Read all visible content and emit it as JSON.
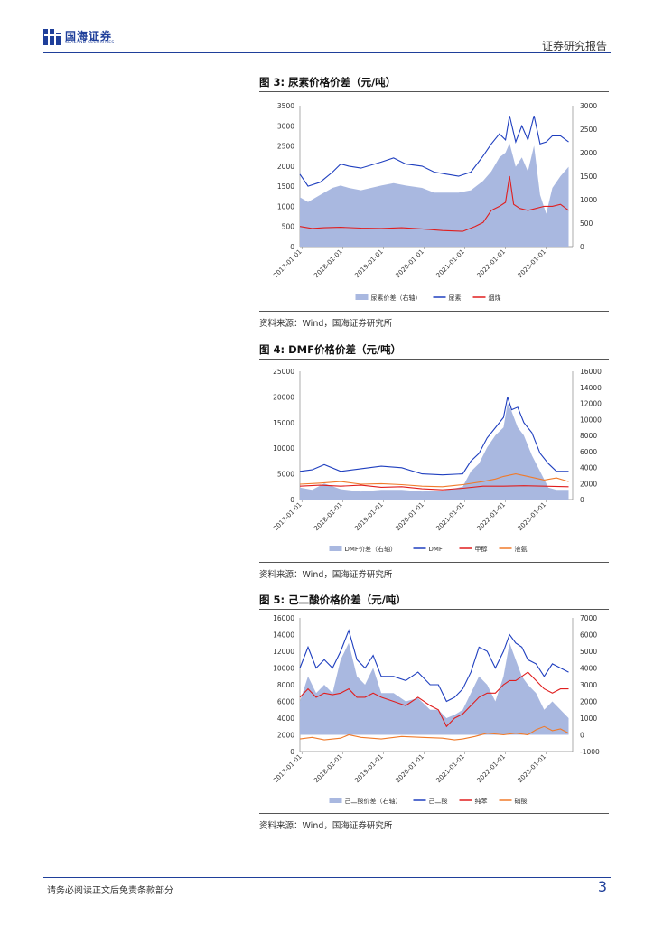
{
  "header": {
    "logo_cn": "国海证券",
    "logo_en": "SEALAND SECURITIES",
    "report_type": "证券研究报告"
  },
  "footer": {
    "disclaimer": "请务必阅读正文后免责条款部分",
    "page_number": "3"
  },
  "colors": {
    "brand": "#1f3f9a",
    "area": "#a9b8e0",
    "blue": "#1f3fbf",
    "red": "#e01e1e",
    "orange": "#f07a2a"
  },
  "figures": [
    {
      "title": "图 3:  尿素价格价差（元/吨）",
      "source": "资料来源：Wind，国海证券研究所",
      "chart_data": {
        "type": "line",
        "x_ticks": [
          "2017-01-01",
          "2018-01-01",
          "2019-01-01",
          "2020-01-01",
          "2021-01-01",
          "2022-01-01",
          "2023-01-01"
        ],
        "left_ylim": [
          0,
          3500
        ],
        "left_ticks": [
          "0",
          "500",
          "1000",
          "1500",
          "2000",
          "2500",
          "3000",
          "3500"
        ],
        "right_ylim": [
          0,
          3000
        ],
        "right_ticks": [
          "0",
          "500",
          "1000",
          "1500",
          "2000",
          "2500",
          "3000"
        ],
        "legend": [
          "尿素价差（右轴）",
          "尿素",
          "烟煤"
        ],
        "series": [
          {
            "name": "尿素价差（右轴）",
            "axis": "right",
            "kind": "area",
            "t": [
              0,
              0.2,
              0.5,
              0.8,
              1.0,
              1.2,
              1.5,
              2.0,
              2.3,
              2.6,
              3.0,
              3.3,
              3.6,
              3.9,
              4.2,
              4.5,
              4.7,
              4.9,
              5.05,
              5.15,
              5.3,
              5.45,
              5.6,
              5.75,
              5.9,
              6.05,
              6.2,
              6.4,
              6.6
            ],
            "v": [
              1050,
              950,
              1100,
              1250,
              1300,
              1250,
              1200,
              1300,
              1350,
              1300,
              1250,
              1150,
              1150,
              1150,
              1200,
              1400,
              1600,
              1900,
              2000,
              2200,
              1700,
              1900,
              1600,
              2150,
              1100,
              700,
              1250,
              1500,
              1700
            ]
          },
          {
            "name": "尿素",
            "axis": "left",
            "kind": "line",
            "t": [
              0,
              0.2,
              0.5,
              0.8,
              1.0,
              1.2,
              1.5,
              2.0,
              2.3,
              2.6,
              3.0,
              3.3,
              3.6,
              3.9,
              4.2,
              4.5,
              4.7,
              4.9,
              5.05,
              5.15,
              5.3,
              5.45,
              5.6,
              5.75,
              5.9,
              6.05,
              6.2,
              6.4,
              6.6
            ],
            "v": [
              1800,
              1500,
              1600,
              1850,
              2050,
              2000,
              1950,
              2100,
              2200,
              2050,
              2000,
              1850,
              1800,
              1750,
              1850,
              2250,
              2550,
              2800,
              2650,
              3250,
              2600,
              3000,
              2650,
              3250,
              2550,
              2600,
              2750,
              2750,
              2600
            ]
          },
          {
            "name": "烟煤",
            "axis": "left",
            "kind": "line",
            "t": [
              0,
              0.3,
              0.6,
              1.0,
              1.5,
              2.0,
              2.5,
              3.0,
              3.5,
              4.0,
              4.3,
              4.5,
              4.7,
              4.9,
              5.05,
              5.15,
              5.25,
              5.4,
              5.6,
              5.8,
              6.0,
              6.2,
              6.4,
              6.6
            ],
            "v": [
              500,
              450,
              470,
              480,
              460,
              450,
              470,
              440,
              400,
              380,
              500,
              600,
              900,
              1000,
              1100,
              1750,
              1050,
              950,
              900,
              950,
              1000,
              1000,
              1050,
              900
            ]
          }
        ]
      }
    },
    {
      "title": "图 4:  DMF价格价差（元/吨）",
      "source": "资料来源：Wind，国海证券研究所",
      "chart_data": {
        "type": "line",
        "x_ticks": [
          "2017-01-01",
          "2018-01-01",
          "2019-01-01",
          "2020-01-01",
          "2021-01-01",
          "2022-01-01",
          "2023-01-01"
        ],
        "left_ylim": [
          0,
          25000
        ],
        "left_ticks": [
          "0",
          "5000",
          "10000",
          "15000",
          "20000",
          "25000"
        ],
        "right_ylim": [
          0,
          16000
        ],
        "right_ticks": [
          "0",
          "2000",
          "4000",
          "6000",
          "8000",
          "10000",
          "12000",
          "14000",
          "16000"
        ],
        "legend": [
          "DMF价差（右轴）",
          "DMF",
          "甲醇",
          "液氨"
        ],
        "series": [
          {
            "name": "DMF价差（右轴）",
            "axis": "right",
            "kind": "area",
            "t": [
              0,
              0.3,
              0.6,
              1.0,
              1.5,
              2.0,
              2.5,
              3.0,
              3.5,
              4.0,
              4.2,
              4.4,
              4.6,
              4.8,
              5.0,
              5.1,
              5.2,
              5.35,
              5.5,
              5.7,
              5.9,
              6.1,
              6.3,
              6.6
            ],
            "v": [
              1500,
              1200,
              2000,
              1300,
              1000,
              1200,
              1200,
              1000,
              1100,
              1600,
              3500,
              4500,
              6500,
              8000,
              9000,
              12000,
              11000,
              9000,
              8000,
              5500,
              3500,
              1500,
              1200,
              1200
            ]
          },
          {
            "name": "DMF",
            "axis": "left",
            "kind": "line",
            "t": [
              0,
              0.3,
              0.6,
              1.0,
              1.5,
              2.0,
              2.5,
              3.0,
              3.5,
              4.0,
              4.2,
              4.4,
              4.6,
              4.8,
              5.0,
              5.1,
              5.2,
              5.35,
              5.5,
              5.7,
              5.9,
              6.1,
              6.3,
              6.6
            ],
            "v": [
              5500,
              5800,
              6800,
              5500,
              6000,
              6500,
              6200,
              5000,
              4800,
              5000,
              7500,
              9000,
              12000,
              14000,
              16000,
              20000,
              17500,
              18000,
              15000,
              13000,
              9000,
              7000,
              5500,
              5500
            ]
          },
          {
            "name": "甲醇",
            "axis": "left",
            "kind": "line",
            "t": [
              0,
              0.5,
              1.0,
              1.5,
              2.0,
              2.5,
              3.0,
              3.5,
              4.0,
              4.5,
              5.0,
              5.5,
              6.0,
              6.6
            ],
            "v": [
              2600,
              2800,
              2600,
              2800,
              2400,
              2500,
              2100,
              1900,
              2200,
              2600,
              2600,
              2700,
              2600,
              2500
            ]
          },
          {
            "name": "液氨",
            "axis": "left",
            "kind": "line",
            "t": [
              0,
              0.5,
              1.0,
              1.5,
              2.0,
              2.5,
              3.0,
              3.5,
              4.0,
              4.5,
              4.8,
              5.0,
              5.3,
              5.6,
              6.0,
              6.3,
              6.6
            ],
            "v": [
              3000,
              3200,
              3500,
              3000,
              3100,
              2900,
              2600,
              2500,
              2900,
              3500,
              4000,
              4500,
              5000,
              4500,
              3800,
              4200,
              3500
            ]
          }
        ]
      }
    },
    {
      "title": "图 5:  己二酸价格价差（元/吨）",
      "source": "资料来源：Wind，国海证券研究所",
      "chart_data": {
        "type": "line",
        "x_ticks": [
          "2017-01-01",
          "2018-01-01",
          "2019-01-01",
          "2020-01-01",
          "2021-01-01",
          "2022-01-01",
          "2023-01-01"
        ],
        "left_ylim": [
          0,
          16000
        ],
        "left_ticks": [
          "0",
          "2000",
          "4000",
          "6000",
          "8000",
          "10000",
          "12000",
          "14000",
          "16000"
        ],
        "right_ylim": [
          -1000,
          7000
        ],
        "right_ticks": [
          "-1000",
          "0",
          "1000",
          "2000",
          "3000",
          "4000",
          "5000",
          "6000",
          "7000"
        ],
        "legend": [
          "己二酸价差（右轴）",
          "己二酸",
          "纯苯",
          "硝酸"
        ],
        "series": [
          {
            "name": "己二酸价差（右轴）",
            "axis": "right",
            "kind": "area",
            "t": [
              0,
              0.2,
              0.4,
              0.6,
              0.8,
              1.0,
              1.2,
              1.4,
              1.6,
              1.8,
              2.0,
              2.3,
              2.6,
              2.9,
              3.2,
              3.4,
              3.6,
              3.8,
              4.0,
              4.2,
              4.4,
              4.6,
              4.8,
              5.0,
              5.15,
              5.3,
              5.45,
              5.6,
              5.8,
              6.0,
              6.2,
              6.4,
              6.6
            ],
            "v": [
              2000,
              3500,
              2500,
              3000,
              2500,
              4500,
              5500,
              3500,
              3000,
              4000,
              2500,
              2500,
              2000,
              2200,
              1500,
              1500,
              1000,
              1200,
              1500,
              2500,
              3500,
              3000,
              2000,
              3500,
              5500,
              4500,
              3500,
              3000,
              2500,
              1500,
              2000,
              1500,
              1000
            ]
          },
          {
            "name": "己二酸",
            "axis": "left",
            "kind": "line",
            "t": [
              0,
              0.2,
              0.4,
              0.6,
              0.8,
              1.0,
              1.2,
              1.4,
              1.6,
              1.8,
              2.0,
              2.3,
              2.6,
              2.9,
              3.2,
              3.4,
              3.6,
              3.8,
              4.0,
              4.2,
              4.4,
              4.6,
              4.8,
              5.0,
              5.15,
              5.3,
              5.45,
              5.6,
              5.8,
              6.0,
              6.2,
              6.4,
              6.6
            ],
            "v": [
              10000,
              12500,
              10000,
              11000,
              10000,
              12000,
              14500,
              11000,
              10000,
              11500,
              9000,
              9000,
              8500,
              9500,
              8000,
              8000,
              6000,
              6500,
              7500,
              9500,
              12500,
              12000,
              10000,
              12000,
              14000,
              13000,
              12500,
              11000,
              10500,
              9000,
              10500,
              10000,
              9500
            ]
          },
          {
            "name": "纯苯",
            "axis": "left",
            "kind": "line",
            "t": [
              0,
              0.2,
              0.4,
              0.6,
              0.8,
              1.0,
              1.2,
              1.4,
              1.6,
              1.8,
              2.0,
              2.3,
              2.6,
              2.9,
              3.2,
              3.4,
              3.6,
              3.8,
              4.0,
              4.2,
              4.4,
              4.6,
              4.8,
              5.0,
              5.15,
              5.3,
              5.45,
              5.6,
              5.8,
              6.0,
              6.2,
              6.4,
              6.6
            ],
            "v": [
              6500,
              7500,
              6500,
              7000,
              6800,
              7000,
              7500,
              6500,
              6500,
              7000,
              6500,
              6000,
              5500,
              6500,
              5500,
              5000,
              3000,
              4000,
              4500,
              5500,
              6500,
              7000,
              7000,
              8000,
              8500,
              8500,
              9000,
              9500,
              8500,
              7500,
              7000,
              7500,
              7500
            ]
          },
          {
            "name": "硝酸",
            "axis": "left",
            "kind": "line",
            "t": [
              0,
              0.3,
              0.6,
              1.0,
              1.2,
              1.5,
              2.0,
              2.5,
              3.0,
              3.5,
              3.8,
              4.0,
              4.3,
              4.6,
              5.0,
              5.3,
              5.6,
              5.8,
              6.0,
              6.2,
              6.4,
              6.6
            ],
            "v": [
              1500,
              1700,
              1400,
              1600,
              2000,
              1700,
              1500,
              1800,
              1700,
              1600,
              1400,
              1500,
              1800,
              2200,
              2000,
              2200,
              2000,
              2600,
              3000,
              2500,
              2700,
              2200
            ]
          }
        ]
      }
    }
  ]
}
